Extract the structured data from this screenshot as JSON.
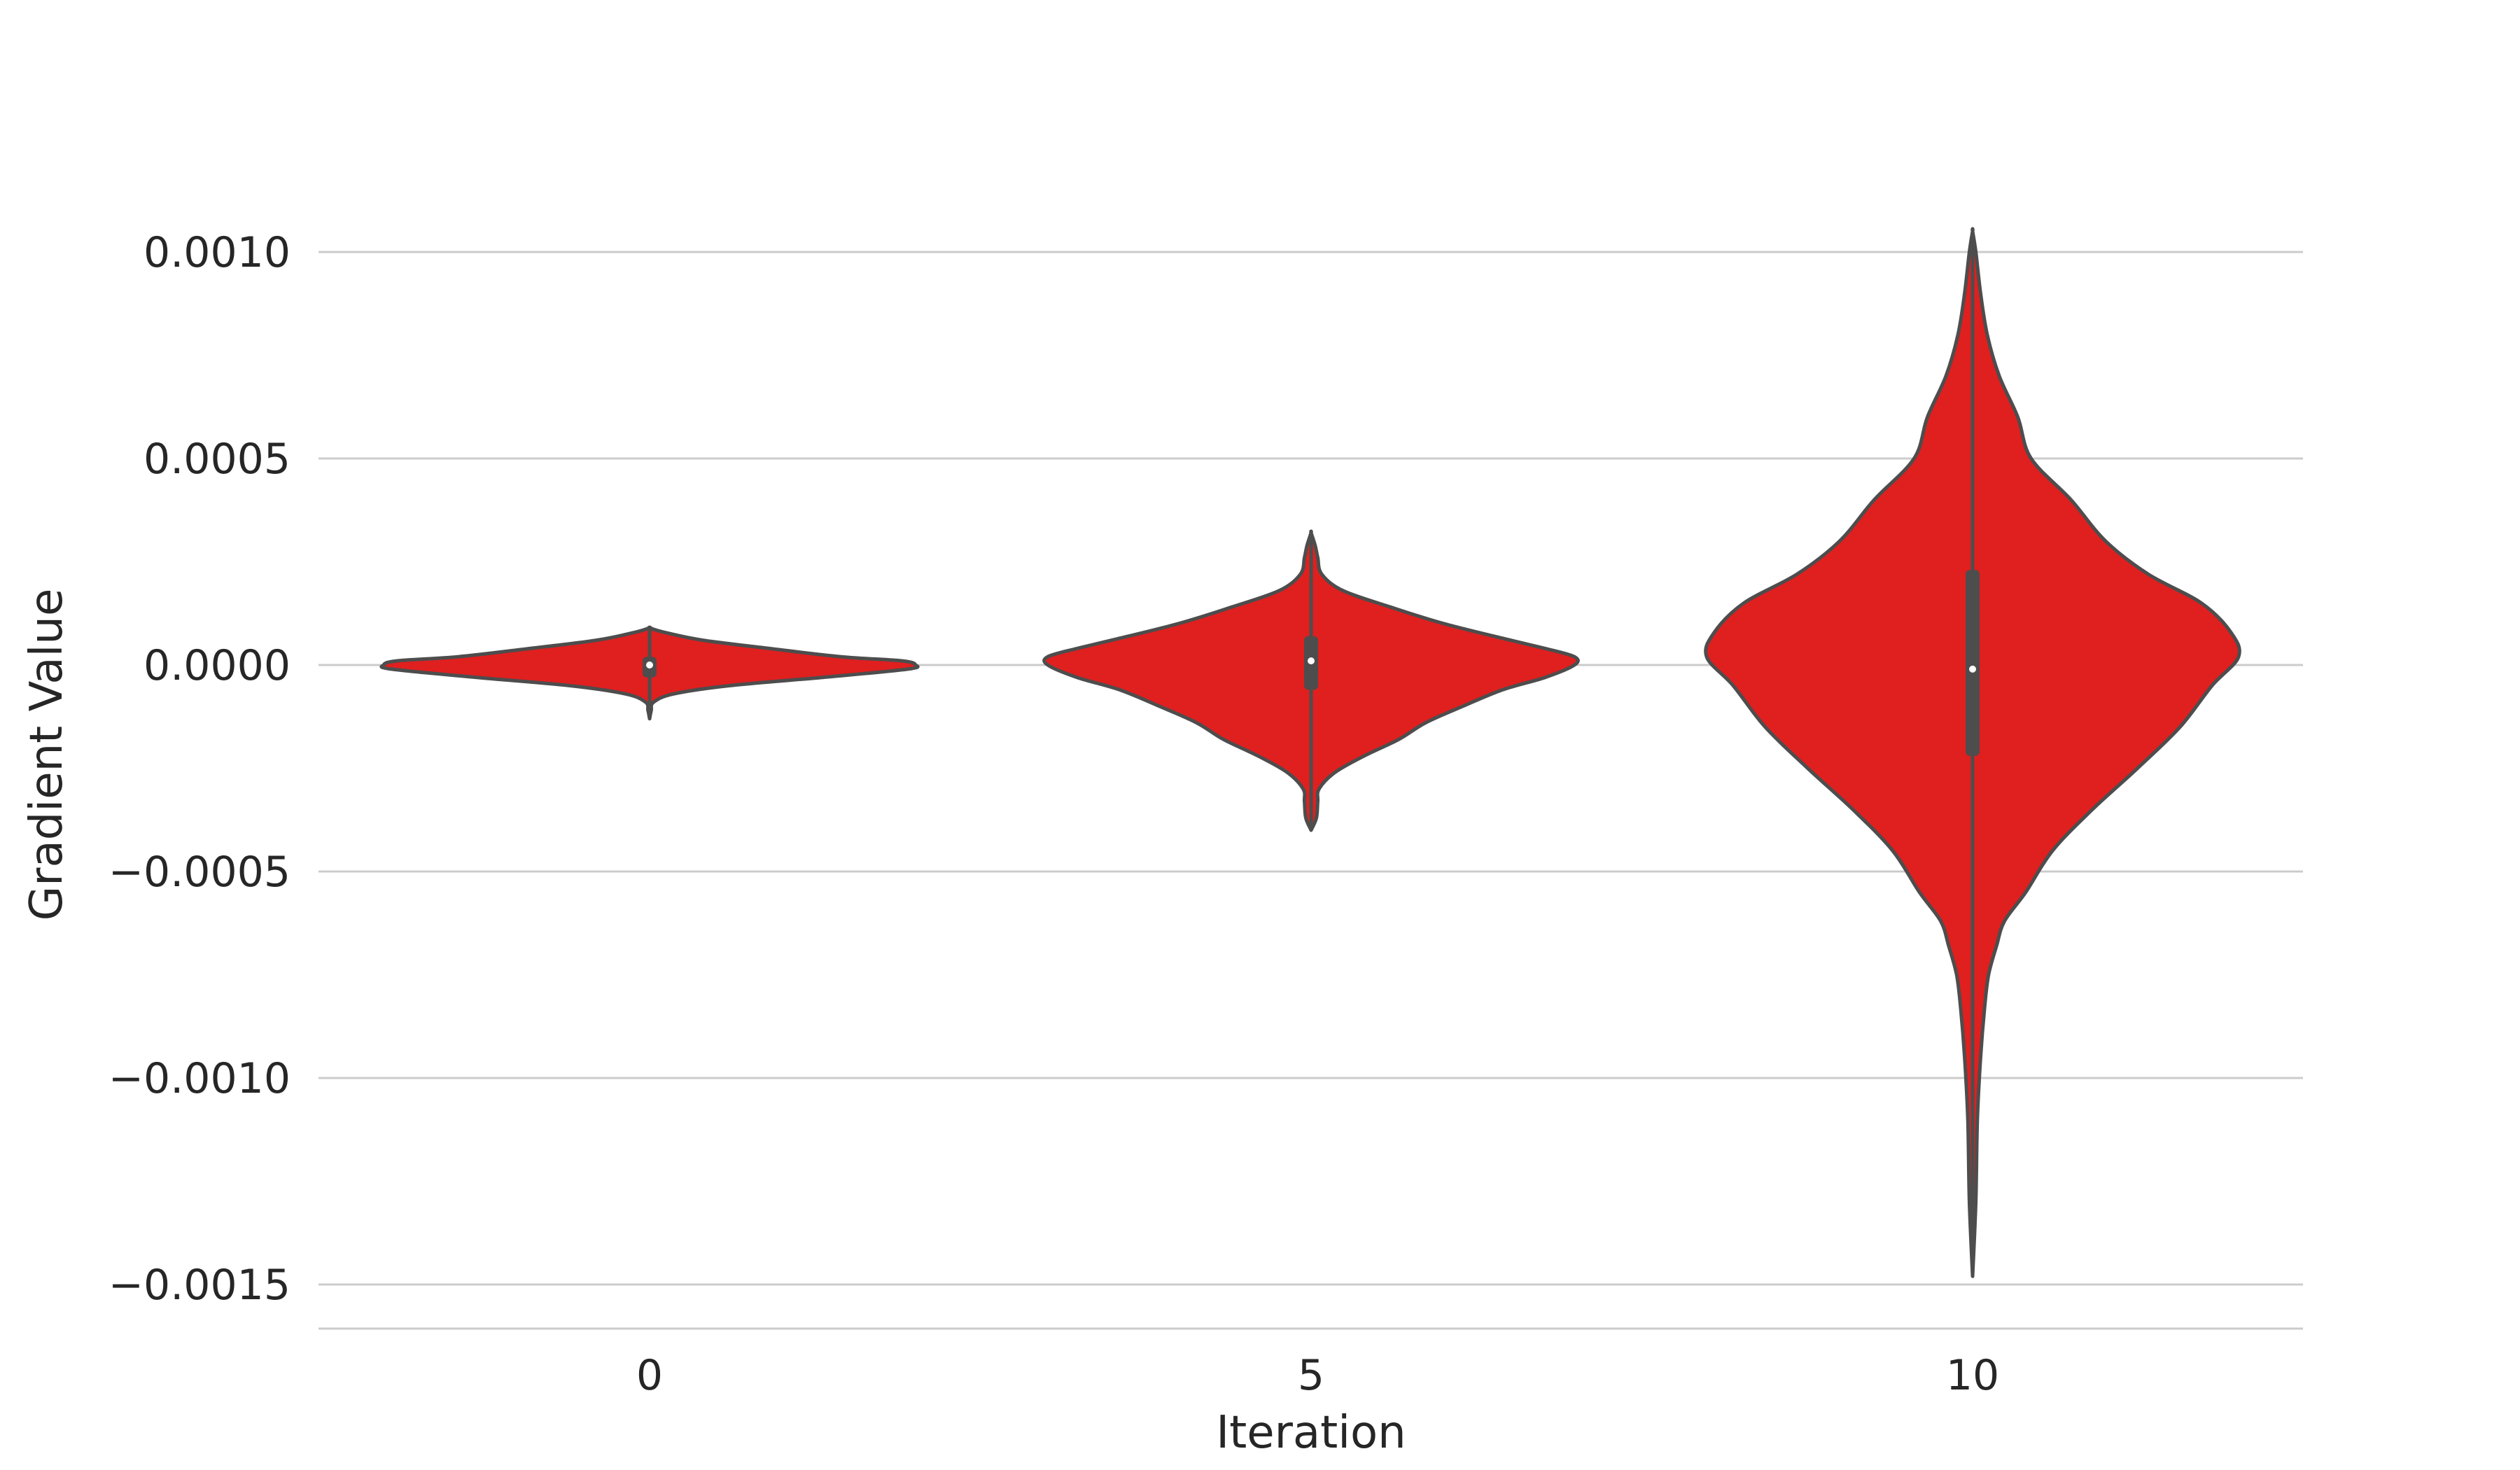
{
  "chart_data": {
    "type": "violin",
    "xlabel": "Iteration",
    "ylabel": "Gradient Value",
    "ylim": [
      -0.0016,
      0.0012
    ],
    "yticks": [
      0.001,
      0.0005,
      0.0,
      -0.0005,
      -0.001,
      -0.0015
    ],
    "ytick_labels": [
      "0.0010",
      "0.0005",
      "0.0000",
      "−0.0005",
      "−0.0010",
      "−0.0015"
    ],
    "categories": [
      "0",
      "5",
      "10"
    ],
    "grid": "horizontal",
    "color": "#e01f1f",
    "edge_color": "#4d4d4d",
    "series": [
      {
        "category": "0",
        "min": -0.00013,
        "q1": -3e-05,
        "median": 0.0,
        "q3": 2e-05,
        "max": 9e-05,
        "density": [
          [
            -0.00013,
            0.0
          ],
          [
            -0.00011,
            0.006
          ],
          [
            -9e-05,
            0.015
          ],
          [
            -7e-05,
            0.09
          ],
          [
            -5e-05,
            0.3
          ],
          [
            -3e-05,
            0.65
          ],
          [
            -1e-05,
            0.97
          ],
          [
            0.0,
            1.0
          ],
          [
            1e-05,
            0.95
          ],
          [
            2e-05,
            0.72
          ],
          [
            4e-05,
            0.45
          ],
          [
            6e-05,
            0.2
          ],
          [
            8e-05,
            0.05
          ],
          [
            9e-05,
            0.0
          ]
        ]
      },
      {
        "category": "5",
        "min": -0.0004,
        "q1": -6e-05,
        "median": 1e-05,
        "q3": 7e-05,
        "max": 0.00032,
        "density": [
          [
            -0.0004,
            0.0
          ],
          [
            -0.00037,
            0.02
          ],
          [
            -0.00033,
            0.025
          ],
          [
            -0.0003,
            0.03
          ],
          [
            -0.00026,
            0.09
          ],
          [
            -0.00022,
            0.2
          ],
          [
            -0.00018,
            0.33
          ],
          [
            -0.00014,
            0.43
          ],
          [
            -0.0001,
            0.57
          ],
          [
            -6e-05,
            0.72
          ],
          [
            -3e-05,
            0.88
          ],
          [
            0.0,
            0.99
          ],
          [
            2e-05,
            0.99
          ],
          [
            4e-05,
            0.88
          ],
          [
            6e-05,
            0.75
          ],
          [
            0.0001,
            0.5
          ],
          [
            0.00014,
            0.3
          ],
          [
            0.00018,
            0.12
          ],
          [
            0.00022,
            0.04
          ],
          [
            0.00026,
            0.025
          ],
          [
            0.00029,
            0.015
          ],
          [
            0.00032,
            0.0
          ]
        ]
      },
      {
        "category": "10",
        "min": -0.00148,
        "q1": -0.00022,
        "median": -1e-05,
        "q3": 0.00023,
        "max": 0.00105,
        "density": [
          [
            -0.00148,
            0.0
          ],
          [
            -0.0013,
            0.012
          ],
          [
            -0.0011,
            0.018
          ],
          [
            -0.00095,
            0.03
          ],
          [
            -0.00083,
            0.045
          ],
          [
            -0.00075,
            0.06
          ],
          [
            -0.00068,
            0.09
          ],
          [
            -0.00062,
            0.12
          ],
          [
            -0.00055,
            0.2
          ],
          [
            -0.00045,
            0.3
          ],
          [
            -0.00035,
            0.45
          ],
          [
            -0.00025,
            0.62
          ],
          [
            -0.00015,
            0.78
          ],
          [
            -5e-05,
            0.9
          ],
          [
            2e-05,
            1.0
          ],
          [
            8e-05,
            0.97
          ],
          [
            0.00015,
            0.86
          ],
          [
            0.00022,
            0.66
          ],
          [
            0.0003,
            0.5
          ],
          [
            0.0004,
            0.37
          ],
          [
            0.0005,
            0.22
          ],
          [
            0.0006,
            0.17
          ],
          [
            0.0007,
            0.1
          ],
          [
            0.0008,
            0.055
          ],
          [
            0.0009,
            0.03
          ],
          [
            0.001,
            0.012
          ],
          [
            0.00105,
            0.0
          ]
        ]
      }
    ]
  }
}
